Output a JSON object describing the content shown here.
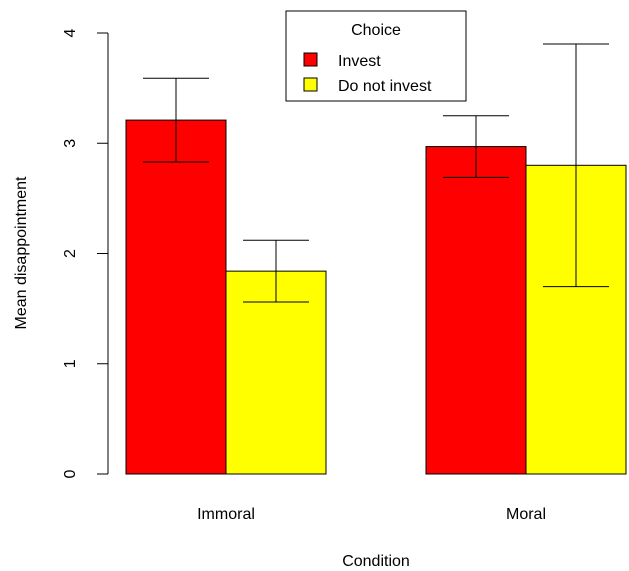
{
  "chart_data": {
    "type": "bar",
    "categories": [
      "Immoral",
      "Moral"
    ],
    "series": [
      {
        "name": "Invest",
        "color": "#ff0000",
        "values": [
          3.21,
          2.97
        ],
        "error_low": [
          2.83,
          2.69
        ],
        "error_high": [
          3.59,
          3.25
        ]
      },
      {
        "name": "Do not invest",
        "color": "#ffff00",
        "values": [
          1.84,
          2.8
        ],
        "error_low": [
          1.56,
          1.7
        ],
        "error_high": [
          2.12,
          3.9
        ]
      }
    ],
    "title": "",
    "xlabel": "Condition",
    "ylabel": "Mean disappointment",
    "ylim": [
      0,
      4
    ],
    "yticks": [
      0,
      1,
      2,
      3,
      4
    ],
    "grid": false,
    "legend": {
      "title": "Choice",
      "position": "top-center"
    }
  }
}
